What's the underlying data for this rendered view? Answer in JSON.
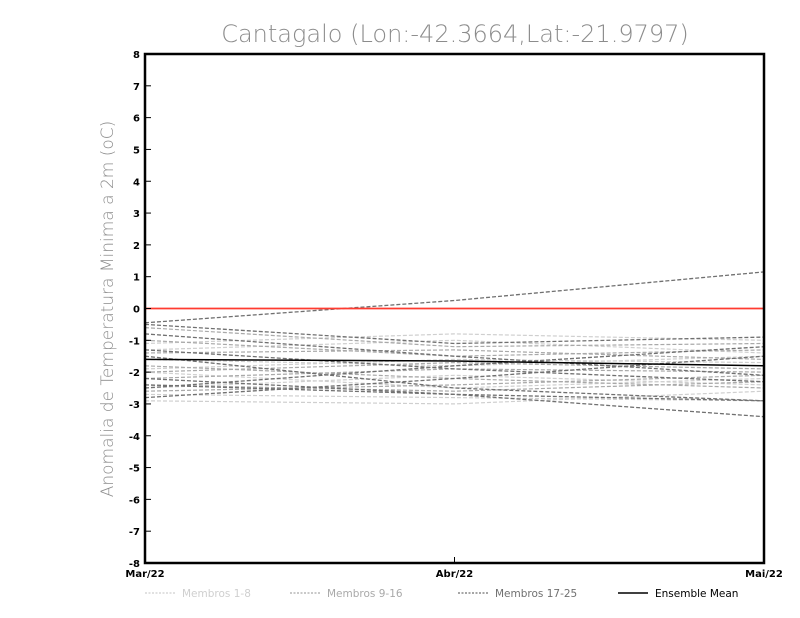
{
  "colors": {
    "background": "#ffffff",
    "frame": "#000000",
    "zero_line": "#ff3b30",
    "members_1_8": "#cfcfcf",
    "members_9_16": "#a9a9a9",
    "members_17_25": "#707070",
    "ensemble_mean": "#000000",
    "title": "#8c8c8c"
  },
  "chart_data": {
    "type": "line",
    "title": "Cantagalo (Lon:-42.3664,Lat:-21.9797)",
    "xlabel": "",
    "ylabel": "Anomalia de Temperatura Minima a 2m (oC)",
    "categories": [
      "Mar/22",
      "Abr/22",
      "Mai/22"
    ],
    "ylim": [
      -8,
      8
    ],
    "yticks": [
      "8",
      "7",
      "6",
      "5",
      "4",
      "3",
      "2",
      "1",
      "0",
      "-1",
      "-2",
      "-3",
      "-4",
      "-5",
      "-6",
      "-7",
      "-8"
    ],
    "reference_line": 0,
    "grid": false,
    "legend_position": "bottom",
    "legend": [
      {
        "label": "Membros 1-8",
        "group": "members_1_8"
      },
      {
        "label": "Membros 9-16",
        "group": "members_9_16"
      },
      {
        "label": "Membros 17-25",
        "group": "members_17_25"
      },
      {
        "label": "Ensemble Mean",
        "group": "ensemble_mean"
      }
    ],
    "series": [
      {
        "group": "members_1_8",
        "values": [
          -1.1,
          -0.8,
          -1.0
        ]
      },
      {
        "group": "members_1_8",
        "values": [
          -1.9,
          -1.6,
          -1.7
        ]
      },
      {
        "group": "members_1_8",
        "values": [
          -2.0,
          -2.5,
          -2.2
        ]
      },
      {
        "group": "members_1_8",
        "values": [
          -2.9,
          -3.0,
          -2.6
        ]
      },
      {
        "group": "members_1_8",
        "values": [
          -1.3,
          -1.0,
          -1.4
        ]
      },
      {
        "group": "members_1_8",
        "values": [
          -2.5,
          -2.1,
          -2.4
        ]
      },
      {
        "group": "members_1_8",
        "values": [
          -1.6,
          -1.8,
          -1.5
        ]
      },
      {
        "group": "members_1_8",
        "values": [
          -2.7,
          -2.8,
          -2.9
        ]
      },
      {
        "group": "members_9_16",
        "values": [
          -0.6,
          -1.2,
          -1.1
        ]
      },
      {
        "group": "members_9_16",
        "values": [
          -1.4,
          -1.3,
          -1.6
        ]
      },
      {
        "group": "members_9_16",
        "values": [
          -2.2,
          -1.9,
          -2.0
        ]
      },
      {
        "group": "members_9_16",
        "values": [
          -1.8,
          -2.2,
          -2.5
        ]
      },
      {
        "group": "members_9_16",
        "values": [
          -2.6,
          -2.4,
          -2.1
        ]
      },
      {
        "group": "members_9_16",
        "values": [
          -1.0,
          -1.5,
          -1.3
        ]
      },
      {
        "group": "members_9_16",
        "values": [
          -2.0,
          -1.7,
          -1.9
        ]
      },
      {
        "group": "members_9_16",
        "values": [
          -2.4,
          -2.6,
          -2.3
        ]
      },
      {
        "group": "members_17_25",
        "values": [
          -0.45,
          0.25,
          1.15
        ]
      },
      {
        "group": "members_17_25",
        "values": [
          -0.5,
          -1.1,
          -0.9
        ]
      },
      {
        "group": "members_17_25",
        "values": [
          -0.8,
          -1.5,
          -2.1
        ]
      },
      {
        "group": "members_17_25",
        "values": [
          -1.3,
          -1.9,
          -2.3
        ]
      },
      {
        "group": "members_17_25",
        "values": [
          -2.2,
          -2.7,
          -3.4
        ]
      },
      {
        "group": "members_17_25",
        "values": [
          -2.8,
          -2.2,
          -1.5
        ]
      },
      {
        "group": "members_17_25",
        "values": [
          -2.5,
          -1.8,
          -1.2
        ]
      },
      {
        "group": "members_17_25",
        "values": [
          -1.5,
          -2.5,
          -2.9
        ]
      },
      {
        "group": "members_17_25",
        "values": [
          -2.4,
          -2.7,
          -2.9
        ]
      },
      {
        "group": "ensemble_mean",
        "values": [
          -1.6,
          -1.65,
          -1.8
        ]
      }
    ]
  }
}
